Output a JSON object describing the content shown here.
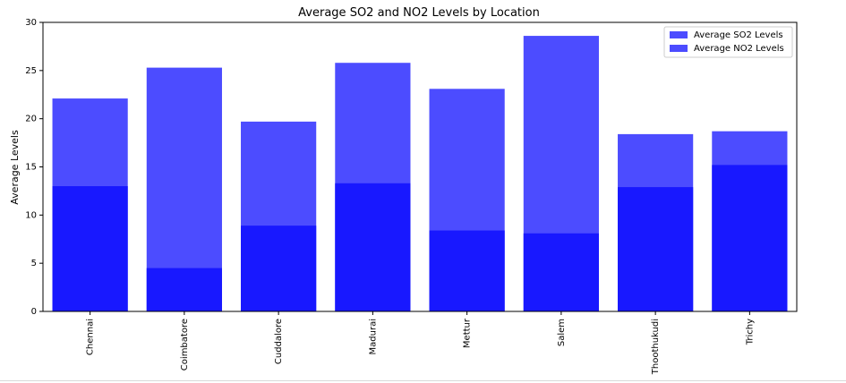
{
  "chart_data": {
    "type": "bar",
    "title": "Average SO2 and NO2 Levels by Location",
    "xlabel": "",
    "ylabel": "Average Levels",
    "ylim": [
      0,
      30
    ],
    "yticks": [
      0,
      5,
      10,
      15,
      20,
      25,
      30
    ],
    "categories": [
      "Chennai",
      "Coimbatore",
      "Cuddalore",
      "Madurai",
      "Mettur",
      "Salem",
      "Thoothukudi",
      "Trichy"
    ],
    "series": [
      {
        "name": "Average SO2 Levels",
        "values": [
          13.0,
          4.5,
          8.9,
          13.3,
          8.4,
          8.1,
          12.9,
          15.2
        ],
        "color": "#4c4cff"
      },
      {
        "name": "Average NO2 Levels",
        "values": [
          22.1,
          25.3,
          19.7,
          25.8,
          23.1,
          28.6,
          18.4,
          18.7
        ],
        "color": "#4c4cff"
      }
    ],
    "overlap_color": "#1818ff",
    "legend_position": "top-right",
    "grid": false
  }
}
